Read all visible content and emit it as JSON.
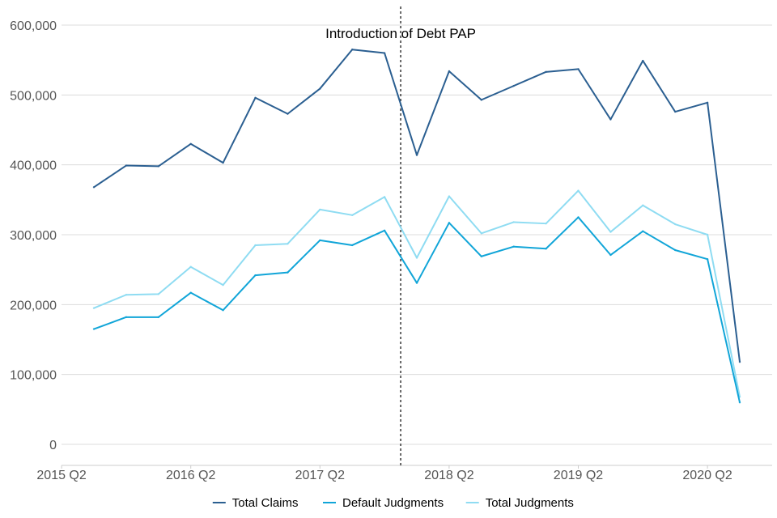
{
  "chart_data": {
    "type": "line",
    "title": "",
    "xlabel": "",
    "ylabel": "",
    "x": [
      "2015 Q3",
      "2015 Q4",
      "2016 Q1",
      "2016 Q2",
      "2016 Q3",
      "2016 Q4",
      "2017 Q1",
      "2017 Q2",
      "2017 Q3",
      "2017 Q4",
      "2018 Q1",
      "2018 Q2",
      "2018 Q3",
      "2018 Q4",
      "2019 Q1",
      "2019 Q2",
      "2019 Q3",
      "2019 Q4",
      "2020 Q1",
      "2020 Q2",
      "2020 Q3"
    ],
    "x_ticks": [
      "2015 Q2",
      "2016 Q2",
      "2017 Q2",
      "2018 Q2",
      "2019 Q2",
      "2020 Q2"
    ],
    "ylim": [
      -30000,
      630000
    ],
    "y_ticks": [
      0,
      100000,
      200000,
      300000,
      400000,
      500000,
      600000
    ],
    "y_tick_labels": [
      "0",
      "100,000",
      "200,000",
      "300,000",
      "400,000",
      "500,000",
      "600,000"
    ],
    "grid": "horizontal",
    "legend_position": "bottom",
    "series": [
      {
        "name": "Total Claims",
        "color": "#2b5f91",
        "values": [
          368000,
          399000,
          398000,
          430000,
          403000,
          496000,
          473000,
          509000,
          565000,
          560000,
          414000,
          534000,
          493000,
          513000,
          533000,
          537000,
          465000,
          549000,
          476000,
          489000,
          118000
        ]
      },
      {
        "name": "Default Judgments",
        "color": "#11a5d8",
        "values": [
          165000,
          182000,
          182000,
          217000,
          192000,
          242000,
          246000,
          292000,
          285000,
          306000,
          231000,
          317000,
          269000,
          283000,
          280000,
          325000,
          271000,
          305000,
          278000,
          265000,
          60000
        ]
      },
      {
        "name": "Total Judgments",
        "color": "#8fdcf2",
        "values": [
          195000,
          214000,
          215000,
          254000,
          228000,
          285000,
          287000,
          336000,
          328000,
          354000,
          267000,
          355000,
          302000,
          318000,
          316000,
          363000,
          304000,
          342000,
          315000,
          300000,
          68000
        ]
      }
    ],
    "annotations": [
      {
        "text": "Introduction of Debt PAP",
        "x": "2017 Q4.5"
      }
    ]
  }
}
